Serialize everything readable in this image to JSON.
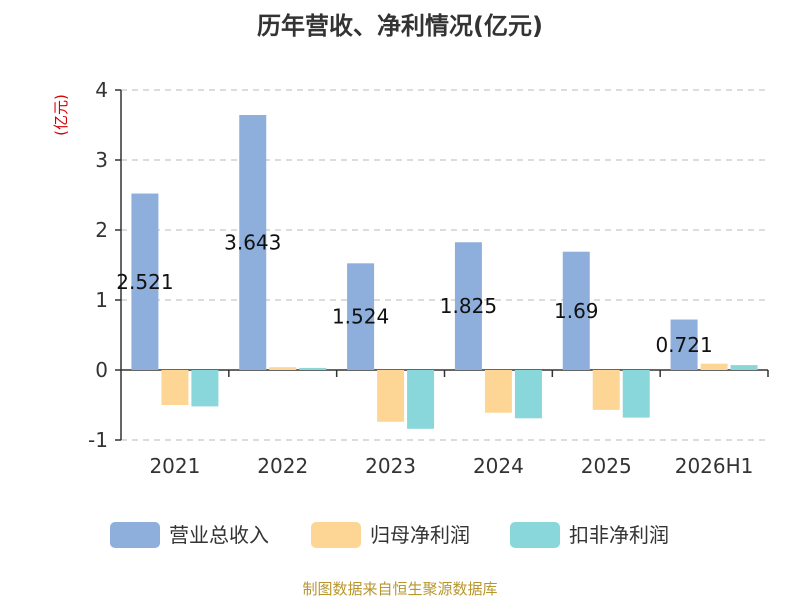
{
  "chart_data": {
    "type": "bar",
    "title": "历年营收、净利情况(亿元)",
    "unit_label": "(亿元)",
    "categories": [
      "2021",
      "2022",
      "2023",
      "2024",
      "2025",
      "2026H1"
    ],
    "series": [
      {
        "name": "营业总收入",
        "color": "#8eafdb",
        "values": [
          2.521,
          3.643,
          1.524,
          1.825,
          1.69,
          0.721
        ],
        "labels": [
          "2.521",
          "3.643",
          "1.524",
          "1.825",
          "1.69",
          "0.721"
        ]
      },
      {
        "name": "归母净利润",
        "color": "#fdd695",
        "values": [
          -0.5,
          0.04,
          -0.74,
          -0.61,
          -0.57,
          0.09
        ]
      },
      {
        "name": "扣非净利润",
        "color": "#89d6db",
        "values": [
          -0.52,
          0.03,
          -0.84,
          -0.69,
          -0.68,
          0.07
        ]
      }
    ],
    "yticks": [
      "4",
      "3",
      "2",
      "1",
      "0",
      "-1"
    ],
    "ylim": [
      -1,
      4
    ],
    "grid": true,
    "legend_position": "bottom"
  },
  "source": "制图数据来自恒生聚源数据库"
}
